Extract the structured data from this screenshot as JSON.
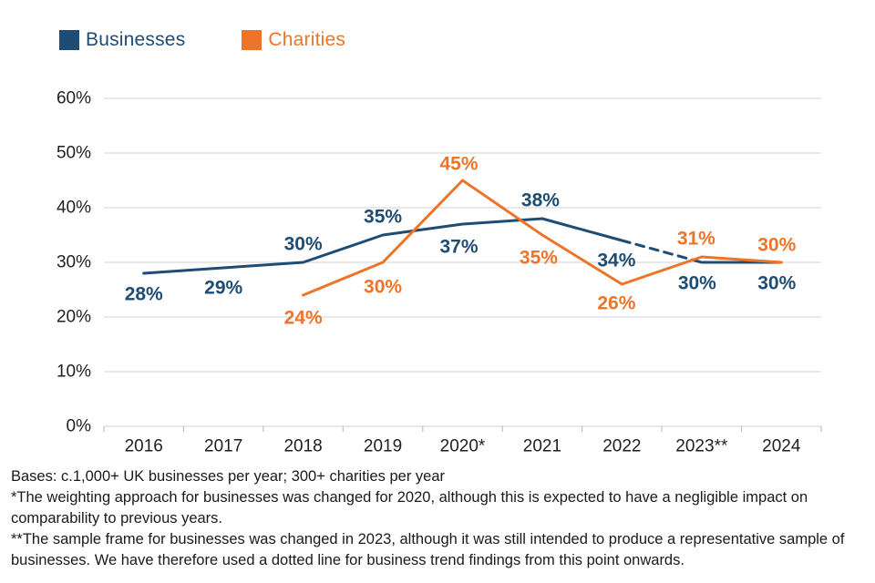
{
  "colors": {
    "businesses": "#1E4C72",
    "charities": "#ED7428",
    "gridline": "#D9D9D9",
    "axis_tick": "#BFBFBF",
    "axis_text": "#1F1F1F"
  },
  "legend": {
    "items": [
      {
        "label": "Businesses",
        "color": "#1E4C72"
      },
      {
        "label": "Charities",
        "color": "#ED7428"
      }
    ]
  },
  "chart_data": {
    "type": "line",
    "title": "",
    "xlabel": "",
    "ylabel": "",
    "categories": [
      "2016",
      "2017",
      "2018",
      "2019",
      "2020*",
      "2021",
      "2022",
      "2023**",
      "2024"
    ],
    "series": [
      {
        "name": "Businesses",
        "color": "#1E4C72",
        "values": [
          28,
          29,
          30,
          35,
          37,
          38,
          34,
          30,
          30
        ],
        "dashed_from_index": 6,
        "dashed_to_index": 7,
        "data_labels": [
          "28%",
          "29%",
          "30%",
          "35%",
          "37%",
          "38%",
          "34%",
          "30%",
          "30%"
        ],
        "label_offsets": [
          [
            0,
            23
          ],
          [
            0,
            22
          ],
          [
            0,
            -20
          ],
          [
            0,
            -20
          ],
          [
            -4,
            25
          ],
          [
            -2,
            -20
          ],
          [
            -6,
            22
          ],
          [
            -5,
            23
          ],
          [
            -5,
            23
          ]
        ]
      },
      {
        "name": "Charities",
        "color": "#ED7428",
        "values": [
          null,
          null,
          24,
          30,
          45,
          35,
          26,
          31,
          30
        ],
        "dashed_from_index": null,
        "dashed_to_index": null,
        "data_labels": [
          null,
          null,
          "24%",
          "30%",
          "45%",
          "35%",
          "26%",
          "31%",
          "30%"
        ],
        "label_offsets": [
          null,
          null,
          [
            0,
            25
          ],
          [
            0,
            27
          ],
          [
            -4,
            -18
          ],
          [
            -4,
            25
          ],
          [
            -6,
            21
          ],
          [
            -6,
            -20
          ],
          [
            -5,
            -19
          ]
        ]
      }
    ],
    "ylim": [
      0,
      60
    ],
    "ytick_step": 10,
    "ytick_labels": [
      "0%",
      "10%",
      "20%",
      "30%",
      "40%",
      "50%",
      "60%"
    ],
    "grid": true,
    "legend_position": "top-left"
  },
  "footer": {
    "bases": "Bases: c.1,000+ UK businesses per year; 300+ charities per year",
    "note1": "*The weighting approach for businesses was changed for 2020, although this is expected to have a negligible impact on comparability to previous years.",
    "note2": "**The sample frame for businesses was changed in 2023, although it was still intended to produce a representative sample of businesses. We have therefore used a dotted line for business trend findings from this point onwards."
  }
}
